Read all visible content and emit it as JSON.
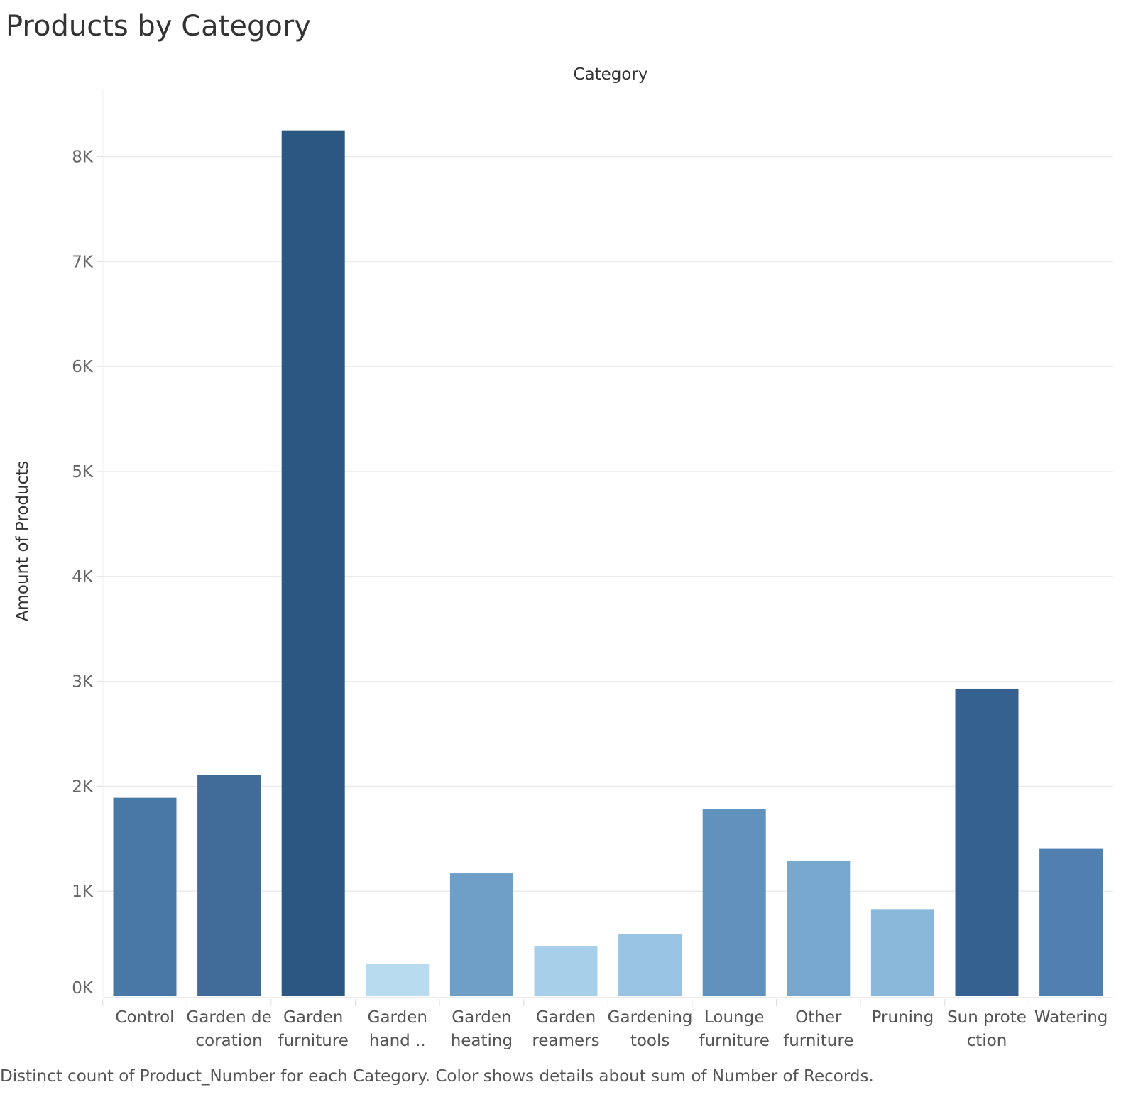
{
  "title": "Products by Category",
  "caption": "Distinct count of Product_Number for each Category.  Color shows details about sum of Number of Records.",
  "chart_data": {
    "type": "bar",
    "title": "Products by Category",
    "xlabel": "Category",
    "ylabel": "Amount of Products",
    "ylim": [
      0,
      8600
    ],
    "yticks": [
      0,
      1000,
      2000,
      3000,
      4000,
      5000,
      6000,
      7000,
      8000
    ],
    "ytick_labels": [
      "0K",
      "1K",
      "2K",
      "3K",
      "4K",
      "5K",
      "6K",
      "7K",
      "8K"
    ],
    "grid": true,
    "categories": [
      "Control",
      "Garden decoration",
      "Garden furniture",
      "Garden hand ..",
      "Garden heating",
      "Garden reamers",
      "Gardening tools",
      "Lounge furniture",
      "Other furniture",
      "Pruning",
      "Sun protection",
      "Watering"
    ],
    "category_label_lines": [
      [
        "Control"
      ],
      [
        "Garden de",
        "coration"
      ],
      [
        "Garden",
        "furniture"
      ],
      [
        "Garden",
        "hand .."
      ],
      [
        "Garden",
        "heating"
      ],
      [
        "Garden",
        "reamers"
      ],
      [
        "Gardening",
        "tools"
      ],
      [
        "Lounge",
        "furniture"
      ],
      [
        "Other",
        "furniture"
      ],
      [
        "Pruning"
      ],
      [
        "Sun prote",
        "ction"
      ],
      [
        "Watering"
      ]
    ],
    "values": [
      1890,
      2110,
      8250,
      310,
      1170,
      480,
      590,
      1780,
      1290,
      830,
      2930,
      1410
    ],
    "colors": [
      "#4a78a6",
      "#416b99",
      "#2c5782",
      "#b8dbef",
      "#6f9fc7",
      "#a8cfe9",
      "#98c3e2",
      "#6191bd",
      "#79a8cf",
      "#89b8da",
      "#346190",
      "#5080b0"
    ]
  }
}
